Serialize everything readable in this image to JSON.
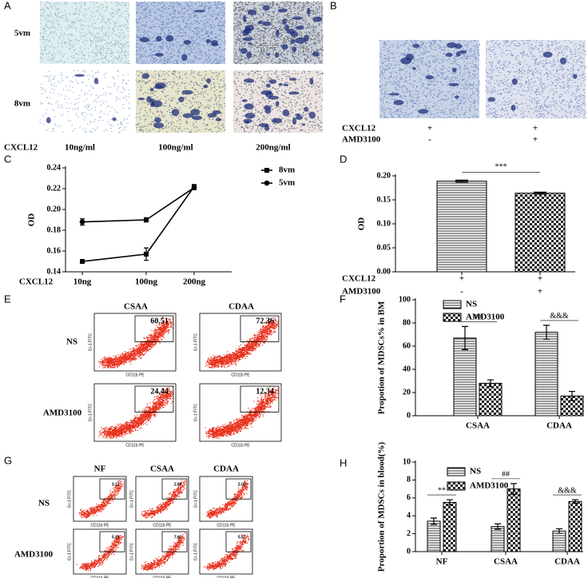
{
  "panels": {
    "A": {
      "letter": "A",
      "rows": [
        "5vm",
        "8vm"
      ],
      "x_label": "CXCL12",
      "columns": [
        "10ng/ml",
        "100ng/ml",
        "200ng/ml"
      ]
    },
    "B": {
      "letter": "B",
      "rows": [
        [
          "CXCL12",
          "+",
          "+"
        ],
        [
          "AMD3100",
          "-",
          "+"
        ]
      ]
    },
    "E": {
      "letter": "E",
      "columns": [
        "CSAA",
        "CDAA"
      ],
      "rows": [
        "NS",
        "AMD3100"
      ],
      "gates": [
        [
          "60.51",
          "72.36"
        ],
        [
          "24.44",
          "12.34"
        ]
      ],
      "x_axis": "CD11b PE",
      "y_axis": "Gr-1 FITC"
    },
    "G": {
      "letter": "G",
      "columns": [
        "NF",
        "CSAA",
        "CDAA"
      ],
      "rows": [
        "NS",
        "AMD3100"
      ],
      "gates": [
        [
          "3.17",
          "2.66",
          "2.02"
        ],
        [
          "5.21",
          "7.02",
          "5.57"
        ]
      ],
      "x_axis": "CD11b PE",
      "y_axis": "Gr-1 FITC"
    }
  },
  "chart_data": [
    {
      "type": "line",
      "panel_label": "C",
      "y_label": "OD",
      "x_label": "CXCL12",
      "categories": [
        "10ng",
        "100ng",
        "200ng"
      ],
      "series": [
        {
          "name": "8vm",
          "color": "#000000",
          "marker": "square",
          "values": [
            0.15,
            0.157,
            0.222
          ],
          "errors": [
            0.001,
            0.006,
            0.002
          ]
        },
        {
          "name": "5vm",
          "color": "#000000",
          "marker": "circle",
          "values": [
            0.188,
            0.19,
            0.221
          ],
          "errors": [
            0.003,
            0.002,
            0.002
          ]
        }
      ],
      "ylim": [
        0.14,
        0.24
      ],
      "yticks": [
        0.14,
        0.16,
        0.18,
        {
          "value": 0.2,
          "label": "0.20"
        },
        0.22,
        0.24
      ]
    },
    {
      "type": "bar",
      "panel_label": "D",
      "y_label": "OD",
      "categories": [
        null,
        null
      ],
      "values": [
        0.189,
        0.164
      ],
      "errors": [
        0.002,
        0.002
      ],
      "patterns": [
        "hlines",
        "checker"
      ],
      "conditions": [
        [
          "CXCL12",
          "+",
          "+"
        ],
        [
          "AMD3100",
          "-",
          "+"
        ]
      ],
      "annotations": [
        "***"
      ],
      "ylim": [
        0,
        0.2
      ],
      "yticks": [
        {
          "value": 0,
          "label": "0.00"
        },
        0.05,
        {
          "value": 0.1,
          "label": "0.10"
        },
        0.15,
        {
          "value": 0.2,
          "label": "0.20"
        }
      ]
    },
    {
      "type": "grouped_bar",
      "panel_label": "F",
      "y_label": "Propotion of MDSCs% in BM",
      "categories": [
        "CSAA",
        "CDAA"
      ],
      "series": [
        {
          "name": "NS",
          "pattern": "hlines",
          "values": [
            67,
            72
          ],
          "errors": [
            10,
            6
          ]
        },
        {
          "name": "AMD3100",
          "pattern": "checker",
          "values": [
            28,
            17
          ],
          "errors": [
            3,
            4
          ]
        }
      ],
      "annotations": [
        "##",
        "&&&"
      ],
      "ylim": [
        0,
        100
      ],
      "yticks": [
        0,
        20,
        40,
        60,
        80,
        100
      ]
    },
    {
      "type": "grouped_bar",
      "panel_label": "H",
      "y_label": "Proportion of MDSCs in blood(%)",
      "categories": [
        "NF",
        "CSAA",
        "CDAA"
      ],
      "series": [
        {
          "name": "NS",
          "pattern": "hlines",
          "values": [
            3.4,
            2.8,
            2.3
          ],
          "errors": [
            0.35,
            0.3,
            0.25
          ]
        },
        {
          "name": "AMD3100",
          "pattern": "checker",
          "values": [
            5.5,
            7.0,
            5.6
          ],
          "errors": [
            0.3,
            0.6,
            0.2
          ]
        }
      ],
      "annotations": [
        "**",
        "##",
        "&&&"
      ],
      "ylim": [
        0,
        10
      ],
      "yticks": [
        0,
        2,
        4,
        6,
        8,
        10
      ]
    }
  ]
}
